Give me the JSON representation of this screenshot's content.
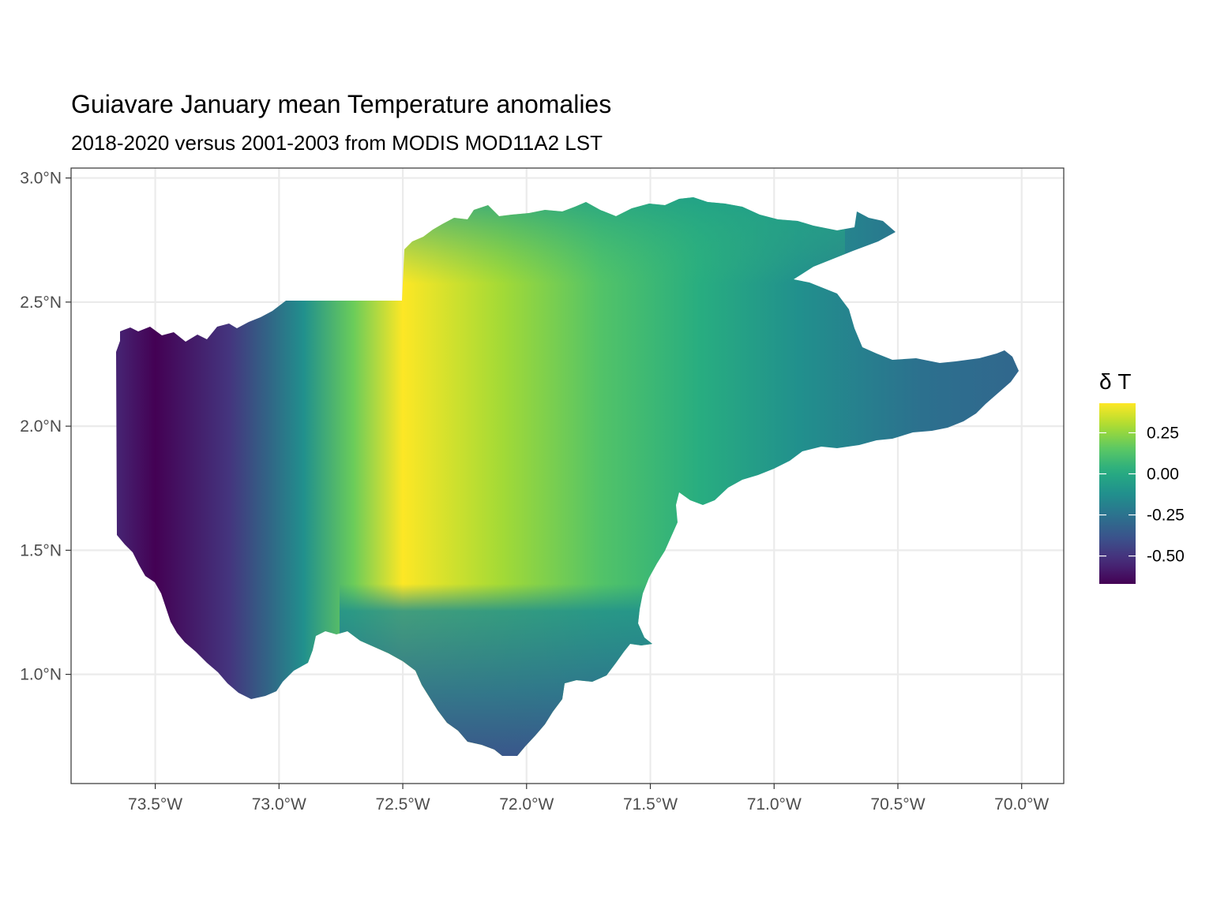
{
  "map": {
    "title": "Guiavare January mean Temperature anomalies",
    "subtitle": "2018-2020 versus 2001-2003 from MODIS MOD11A2 LST",
    "x_ticks": [
      "73.5°W",
      "73.0°W",
      "72.5°W",
      "72.0°W",
      "71.5°W",
      "71.0°W",
      "70.5°W",
      "70.0°W"
    ],
    "y_ticks": [
      "3.0°N",
      "2.5°N",
      "2.0°N",
      "1.5°N",
      "1.0°N"
    ],
    "legend": {
      "title": "δ T",
      "labels": [
        "0.25",
        "0.00",
        "-0.25",
        "-0.50"
      ]
    }
  },
  "chart_data": {
    "type": "heatmap",
    "title": "Guiavare January mean Temperature anomalies",
    "subtitle": "2018-2020 versus 2001-2003 from MODIS MOD11A2 LST",
    "xlabel": "",
    "ylabel": "",
    "x_ticks_deg": [
      -73.5,
      -73.0,
      -72.5,
      -72.0,
      -71.5,
      -71.0,
      -70.5,
      -70.0
    ],
    "y_ticks_deg": [
      3.0,
      2.5,
      2.0,
      1.5,
      1.0
    ],
    "xlim": [
      -73.84,
      -69.83
    ],
    "ylim": [
      0.56,
      3.04
    ],
    "colorscale": "viridis",
    "color_range": [
      -0.67,
      0.43
    ],
    "legend_ticks": [
      0.25,
      0.0,
      -0.25,
      -0.5
    ],
    "grid": true,
    "value_profile_by_longitude": [
      {
        "lon": -73.65,
        "value": -0.56
      },
      {
        "lon": -73.5,
        "value": -0.67
      },
      {
        "lon": -73.2,
        "value": -0.5
      },
      {
        "lon": -72.9,
        "value": -0.12
      },
      {
        "lon": -72.7,
        "value": 0.18
      },
      {
        "lon": -72.5,
        "value": 0.43
      },
      {
        "lon": -72.1,
        "value": 0.28
      },
      {
        "lon": -71.7,
        "value": 0.13
      },
      {
        "lon": -71.3,
        "value": 0.02
      },
      {
        "lon": -70.9,
        "value": -0.12
      },
      {
        "lon": -70.4,
        "value": -0.26
      },
      {
        "lon": -70.0,
        "value": -0.3
      }
    ],
    "colors": {
      "low": "#440154",
      "mid_low": "#3b528b",
      "mid": "#21908c",
      "mid_high": "#5dc863",
      "high": "#fde725"
    }
  }
}
